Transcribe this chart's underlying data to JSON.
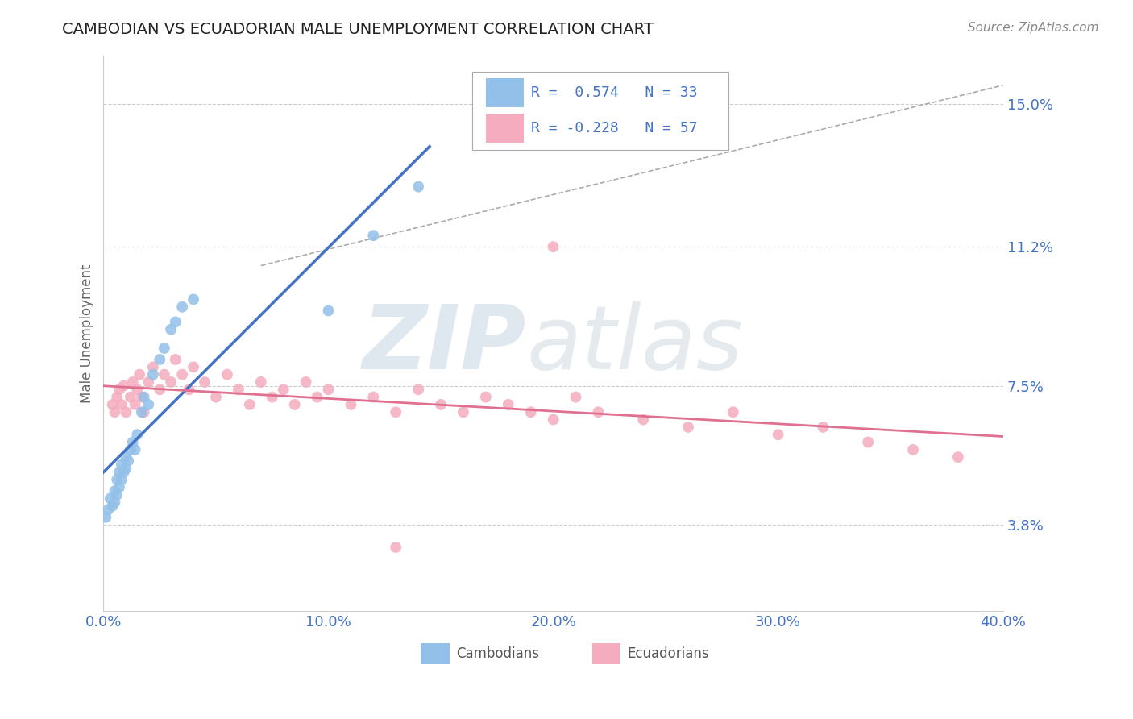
{
  "title": "CAMBODIAN VS ECUADORIAN MALE UNEMPLOYMENT CORRELATION CHART",
  "source": "Source: ZipAtlas.com",
  "ylabel": "Male Unemployment",
  "xlim": [
    0.0,
    0.4
  ],
  "ylim": [
    0.015,
    0.163
  ],
  "yticks": [
    0.038,
    0.075,
    0.112,
    0.15
  ],
  "ytick_labels": [
    "3.8%",
    "7.5%",
    "11.2%",
    "15.0%"
  ],
  "xticks": [
    0.0,
    0.1,
    0.2,
    0.3,
    0.4
  ],
  "xtick_labels": [
    "0.0%",
    "10.0%",
    "20.0%",
    "30.0%",
    "40.0%"
  ],
  "cambodian_color": "#92C0E8",
  "ecuadorian_color": "#F4ACBE",
  "blue_line_color": "#4472C4",
  "pink_line_color": "#E07090",
  "r_cambodian": 0.574,
  "n_cambodian": 33,
  "r_ecuadorian": -0.228,
  "n_ecuadorian": 57,
  "legend_label_cambodian": "Cambodians",
  "legend_label_ecuadorian": "Ecuadorians",
  "watermark_zip": "ZIP",
  "watermark_atlas": "atlas",
  "title_color": "#222222",
  "tick_color": "#4472C4",
  "grid_color": "#CCCCCC",
  "background_color": "#FFFFFF",
  "cambodian_x": [
    0.001,
    0.002,
    0.003,
    0.004,
    0.005,
    0.005,
    0.006,
    0.006,
    0.007,
    0.007,
    0.008,
    0.008,
    0.009,
    0.01,
    0.01,
    0.011,
    0.012,
    0.013,
    0.014,
    0.015,
    0.017,
    0.018,
    0.02,
    0.022,
    0.025,
    0.027,
    0.03,
    0.032,
    0.035,
    0.04,
    0.1,
    0.12,
    0.14
  ],
  "cambodian_y": [
    0.04,
    0.042,
    0.045,
    0.043,
    0.044,
    0.047,
    0.046,
    0.05,
    0.048,
    0.052,
    0.05,
    0.054,
    0.052,
    0.053,
    0.056,
    0.055,
    0.058,
    0.06,
    0.058,
    0.062,
    0.068,
    0.072,
    0.07,
    0.078,
    0.082,
    0.085,
    0.09,
    0.092,
    0.096,
    0.098,
    0.095,
    0.115,
    0.128
  ],
  "ecuadorian_x": [
    0.004,
    0.005,
    0.006,
    0.007,
    0.008,
    0.009,
    0.01,
    0.012,
    0.013,
    0.014,
    0.015,
    0.016,
    0.017,
    0.018,
    0.02,
    0.022,
    0.025,
    0.027,
    0.03,
    0.032,
    0.035,
    0.038,
    0.04,
    0.045,
    0.05,
    0.055,
    0.06,
    0.065,
    0.07,
    0.075,
    0.08,
    0.085,
    0.09,
    0.095,
    0.1,
    0.11,
    0.12,
    0.13,
    0.14,
    0.15,
    0.16,
    0.17,
    0.18,
    0.19,
    0.2,
    0.21,
    0.22,
    0.24,
    0.26,
    0.28,
    0.3,
    0.32,
    0.34,
    0.36,
    0.38,
    0.2,
    0.13
  ],
  "ecuadorian_y": [
    0.07,
    0.068,
    0.072,
    0.074,
    0.07,
    0.075,
    0.068,
    0.072,
    0.076,
    0.07,
    0.074,
    0.078,
    0.072,
    0.068,
    0.076,
    0.08,
    0.074,
    0.078,
    0.076,
    0.082,
    0.078,
    0.074,
    0.08,
    0.076,
    0.072,
    0.078,
    0.074,
    0.07,
    0.076,
    0.072,
    0.074,
    0.07,
    0.076,
    0.072,
    0.074,
    0.07,
    0.072,
    0.068,
    0.074,
    0.07,
    0.068,
    0.072,
    0.07,
    0.068,
    0.066,
    0.072,
    0.068,
    0.066,
    0.064,
    0.068,
    0.062,
    0.064,
    0.06,
    0.058,
    0.056,
    0.112,
    0.032
  ],
  "diag_line_x": [
    0.07,
    0.4
  ],
  "diag_line_y": [
    0.107,
    0.155
  ]
}
